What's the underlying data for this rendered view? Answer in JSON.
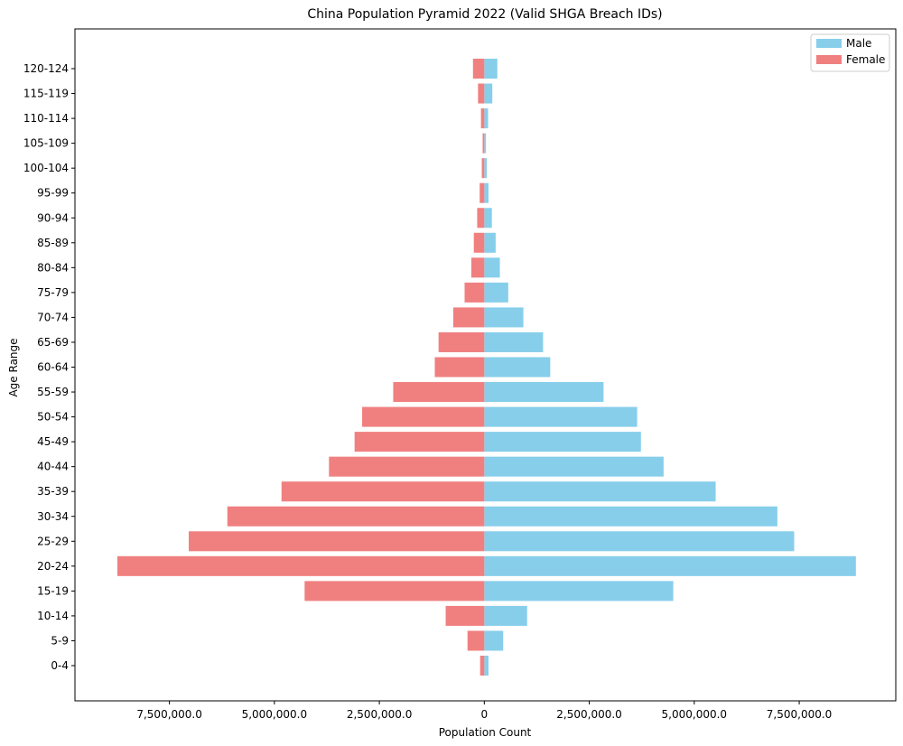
{
  "chart_data": {
    "type": "bar",
    "orientation": "horizontal",
    "title": "China Population Pyramid 2022 (Valid SHGA Breach IDs)",
    "xlabel": "Population Count",
    "ylabel": "Age Range",
    "categories": [
      "0-4",
      "5-9",
      "10-14",
      "15-19",
      "20-24",
      "25-29",
      "30-34",
      "35-39",
      "40-44",
      "45-49",
      "50-54",
      "55-59",
      "60-64",
      "65-69",
      "70-74",
      "75-79",
      "80-84",
      "85-89",
      "90-94",
      "95-99",
      "100-104",
      "105-109",
      "110-114",
      "115-119",
      "120-124"
    ],
    "series": [
      {
        "name": "Male",
        "color": "#87ceeb",
        "values": [
          100000,
          450000,
          1020000,
          4500000,
          8850000,
          7380000,
          6980000,
          5510000,
          4270000,
          3730000,
          3640000,
          2840000,
          1570000,
          1400000,
          930000,
          570000,
          370000,
          270000,
          180000,
          100000,
          60000,
          40000,
          90000,
          190000,
          310000
        ]
      },
      {
        "name": "Female",
        "color": "#f08080",
        "values": [
          -100000,
          -400000,
          -920000,
          -4280000,
          -8740000,
          -7040000,
          -6120000,
          -4830000,
          -3700000,
          -3090000,
          -2910000,
          -2170000,
          -1180000,
          -1090000,
          -740000,
          -470000,
          -310000,
          -250000,
          -170000,
          -110000,
          -60000,
          -40000,
          -80000,
          -150000,
          -270000
        ]
      }
    ],
    "xlim": [
      -9750000,
      9800000
    ],
    "xticks": [
      -7500000,
      -5000000,
      -2500000,
      0,
      2500000,
      5000000,
      7500000
    ],
    "xtick_labels": [
      "7,500,000.0",
      "5,000,000.0",
      "2,500,000.0",
      "0",
      "2,500,000.0",
      "5,000,000.0",
      "7,500,000.0"
    ],
    "grid": false,
    "legend_position": "top-right"
  }
}
